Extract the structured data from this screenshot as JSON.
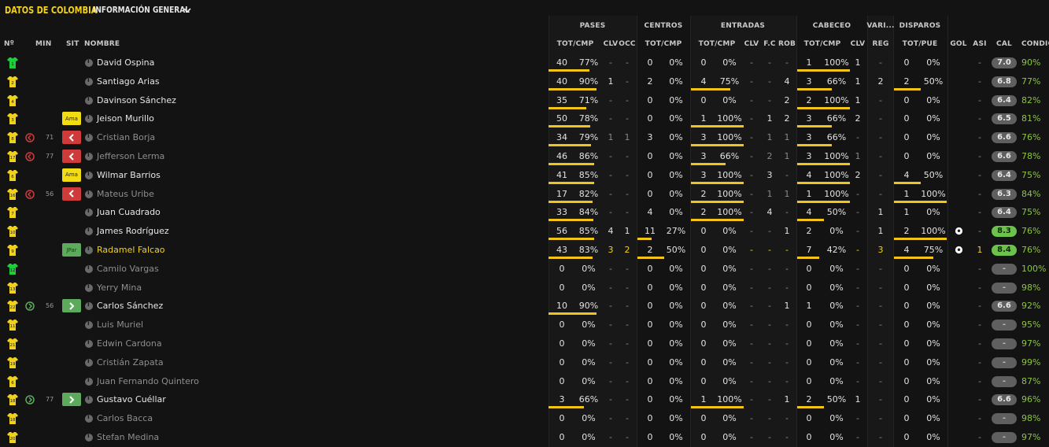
{
  "header": {
    "team_title": "DATOS DE COLOMBIA",
    "view_label": "INFORMACIÓN GENERAL"
  },
  "groups": {
    "pases": "PASES",
    "centros": "CENTROS",
    "entradas": "ENTRADAS",
    "cabeceo": "CABECEO",
    "varios": "VARI...",
    "disparos": "DISPAROS"
  },
  "columns": {
    "num": "Nº",
    "min": "MIN",
    "sit": "SIT",
    "nombre": "NOMBRE",
    "pases_totcmp": "TOT/CMP",
    "pases_clv": "CLV",
    "pases_occ": "OCC",
    "centros_totcmp": "TOT/CMP",
    "entradas_totcmp": "TOT/CMP",
    "entradas_clv": "CLV",
    "entradas_fc": "F.C",
    "entradas_rob": "ROB",
    "cabeceo_totcmp": "TOT/CMP",
    "cabeceo_clv": "CLV",
    "varios_reg": "REG",
    "disparos_totpue": "TOT/PUE",
    "gol": "GOL",
    "asi": "ASI",
    "cal": "CAL",
    "condic": "CONDIC"
  },
  "colors": {
    "accent_yellow": "#f0d21c",
    "bar_yellow": "#f2c318",
    "goalkeeper_green": "#1fcf3a",
    "sub_out_red": "#cf3b3b",
    "sub_in_green": "#5eaa5c",
    "condition_green": "#8cc63f"
  },
  "players": [
    {
      "num": "1",
      "gk": true,
      "min": "",
      "sit": "",
      "sit_type": "",
      "name": "David Ospina",
      "state": "active",
      "p_tot": "40",
      "p_pct": "77%",
      "p_bar": 0.77,
      "p_clv": "-",
      "p_occ": "-",
      "c_tot": "0",
      "c_pct": "0%",
      "c_bar": 0,
      "e_tot": "0",
      "e_pct": "0%",
      "e_bar": 0,
      "e_clv": "-",
      "e_fc": "-",
      "e_rob": "-",
      "h_tot": "1",
      "h_pct": "100%",
      "h_bar": 1,
      "h_clv": "1",
      "reg": "-",
      "d_tot": "0",
      "d_pct": "0%",
      "d_bar": 0,
      "gol": "",
      "asi": "-",
      "cal": "7.0",
      "cal_type": "",
      "cond": "90%"
    },
    {
      "num": "2",
      "gk": false,
      "min": "",
      "sit": "",
      "sit_type": "",
      "name": "Santiago Arias",
      "state": "active",
      "p_tot": "40",
      "p_pct": "90%",
      "p_bar": 0.9,
      "p_clv": "1",
      "p_occ": "-",
      "c_tot": "2",
      "c_pct": "0%",
      "c_bar": 0,
      "e_tot": "4",
      "e_pct": "75%",
      "e_bar": 0.75,
      "e_clv": "-",
      "e_fc": "-",
      "e_rob": "4",
      "h_tot": "3",
      "h_pct": "66%",
      "h_bar": 0.66,
      "h_clv": "1",
      "reg": "2",
      "d_tot": "2",
      "d_pct": "50%",
      "d_bar": 0.5,
      "gol": "",
      "asi": "-",
      "cal": "6.8",
      "cal_type": "",
      "cond": "77%"
    },
    {
      "num": "4",
      "gk": false,
      "min": "",
      "sit": "",
      "sit_type": "",
      "name": "Davinson Sánchez",
      "state": "active",
      "p_tot": "35",
      "p_pct": "71%",
      "p_bar": 0.71,
      "p_clv": "-",
      "p_occ": "-",
      "c_tot": "0",
      "c_pct": "0%",
      "c_bar": 0,
      "e_tot": "0",
      "e_pct": "0%",
      "e_bar": 0,
      "e_clv": "-",
      "e_fc": "-",
      "e_rob": "2",
      "h_tot": "2",
      "h_pct": "100%",
      "h_bar": 1,
      "h_clv": "1",
      "reg": "-",
      "d_tot": "0",
      "d_pct": "0%",
      "d_bar": 0,
      "gol": "",
      "asi": "-",
      "cal": "6.4",
      "cal_type": "",
      "cond": "82%"
    },
    {
      "num": "3",
      "gk": false,
      "min": "",
      "sit": "Ama",
      "sit_type": "ama",
      "name": "Jeison Murillo",
      "state": "active",
      "p_tot": "50",
      "p_pct": "78%",
      "p_bar": 0.78,
      "p_clv": "-",
      "p_occ": "-",
      "c_tot": "0",
      "c_pct": "0%",
      "c_bar": 0,
      "e_tot": "1",
      "e_pct": "100%",
      "e_bar": 1,
      "e_clv": "-",
      "e_fc": "1",
      "e_rob": "2",
      "h_tot": "3",
      "h_pct": "66%",
      "h_bar": 0.66,
      "h_clv": "2",
      "reg": "-",
      "d_tot": "0",
      "d_pct": "0%",
      "d_bar": 0,
      "gol": "",
      "asi": "-",
      "cal": "6.5",
      "cal_type": "",
      "cond": "81%"
    },
    {
      "num": "8",
      "gk": false,
      "min": "71",
      "min_icon": "out",
      "sit": "",
      "sit_type": "out",
      "name": "Cristian Borja",
      "state": "inactive",
      "p_tot": "34",
      "p_pct": "79%",
      "p_bar": 0.79,
      "p_clv": "1",
      "p_occ": "1",
      "c_tot": "3",
      "c_pct": "0%",
      "c_bar": 0,
      "e_tot": "3",
      "e_pct": "100%",
      "e_bar": 1,
      "e_clv": "-",
      "e_fc": "1",
      "e_rob": "1",
      "h_tot": "3",
      "h_pct": "66%",
      "h_bar": 0.66,
      "h_clv": "-",
      "reg": "-",
      "d_tot": "0",
      "d_pct": "0%",
      "d_bar": 0,
      "gol": "",
      "asi": "-",
      "cal": "6.6",
      "cal_type": "",
      "cond": "76%"
    },
    {
      "num": "17",
      "gk": false,
      "min": "77",
      "min_icon": "out",
      "sit": "",
      "sit_type": "out",
      "name": "Jefferson Lerma",
      "state": "inactive",
      "p_tot": "46",
      "p_pct": "86%",
      "p_bar": 0.86,
      "p_clv": "-",
      "p_occ": "-",
      "c_tot": "0",
      "c_pct": "0%",
      "c_bar": 0,
      "e_tot": "3",
      "e_pct": "66%",
      "e_bar": 0.66,
      "e_clv": "-",
      "e_fc": "2",
      "e_rob": "1",
      "h_tot": "3",
      "h_pct": "100%",
      "h_bar": 1,
      "h_clv": "1",
      "reg": "-",
      "d_tot": "0",
      "d_pct": "0%",
      "d_bar": 0,
      "gol": "",
      "asi": "-",
      "cal": "6.6",
      "cal_type": "",
      "cond": "78%"
    },
    {
      "num": "6",
      "gk": false,
      "min": "",
      "sit": "Ama",
      "sit_type": "ama",
      "name": "Wilmar Barrios",
      "state": "active",
      "p_tot": "41",
      "p_pct": "85%",
      "p_bar": 0.85,
      "p_clv": "-",
      "p_occ": "-",
      "c_tot": "0",
      "c_pct": "0%",
      "c_bar": 0,
      "e_tot": "3",
      "e_pct": "100%",
      "e_bar": 1,
      "e_clv": "-",
      "e_fc": "3",
      "e_rob": "-",
      "h_tot": "4",
      "h_pct": "100%",
      "h_bar": 1,
      "h_clv": "2",
      "reg": "-",
      "d_tot": "4",
      "d_pct": "50%",
      "d_bar": 0.5,
      "gol": "",
      "asi": "-",
      "cal": "6.4",
      "cal_type": "",
      "cond": "75%"
    },
    {
      "num": "16",
      "gk": false,
      "min": "56",
      "min_icon": "out",
      "sit": "",
      "sit_type": "out",
      "name": "Mateus Uribe",
      "state": "inactive",
      "p_tot": "17",
      "p_pct": "82%",
      "p_bar": 0.82,
      "p_clv": "-",
      "p_occ": "-",
      "c_tot": "0",
      "c_pct": "0%",
      "c_bar": 0,
      "e_tot": "2",
      "e_pct": "100%",
      "e_bar": 1,
      "e_clv": "-",
      "e_fc": "1",
      "e_rob": "1",
      "h_tot": "1",
      "h_pct": "100%",
      "h_bar": 1,
      "h_clv": "-",
      "reg": "-",
      "d_tot": "1",
      "d_pct": "100%",
      "d_bar": 1,
      "gol": "",
      "asi": "-",
      "cal": "6.3",
      "cal_type": "",
      "cond": "84%"
    },
    {
      "num": "7",
      "gk": false,
      "min": "",
      "sit": "",
      "sit_type": "",
      "name": "Juan Cuadrado",
      "state": "active",
      "p_tot": "33",
      "p_pct": "84%",
      "p_bar": 0.84,
      "p_clv": "-",
      "p_occ": "-",
      "c_tot": "4",
      "c_pct": "0%",
      "c_bar": 0,
      "e_tot": "2",
      "e_pct": "100%",
      "e_bar": 1,
      "e_clv": "-",
      "e_fc": "4",
      "e_rob": "-",
      "h_tot": "4",
      "h_pct": "50%",
      "h_bar": 0.5,
      "h_clv": "-",
      "reg": "1",
      "d_tot": "1",
      "d_pct": "0%",
      "d_bar": 0,
      "gol": "",
      "asi": "-",
      "cal": "6.4",
      "cal_type": "",
      "cond": "75%"
    },
    {
      "num": "10",
      "gk": false,
      "min": "",
      "sit": "",
      "sit_type": "",
      "name": "James Rodríguez",
      "state": "active",
      "p_tot": "56",
      "p_pct": "85%",
      "p_bar": 0.85,
      "p_clv": "4",
      "p_occ": "1",
      "c_tot": "11",
      "c_pct": "27%",
      "c_bar": 0.27,
      "e_tot": "0",
      "e_pct": "0%",
      "e_bar": 0,
      "e_clv": "-",
      "e_fc": "-",
      "e_rob": "1",
      "h_tot": "2",
      "h_pct": "0%",
      "h_bar": 0,
      "h_clv": "-",
      "reg": "1",
      "d_tot": "2",
      "d_pct": "100%",
      "d_bar": 1,
      "gol": "ball",
      "asi": "-",
      "cal": "8.3",
      "cal_type": "top",
      "cond": "76%"
    },
    {
      "num": "9",
      "gk": false,
      "min": "",
      "sit": "JPar",
      "sit_type": "jpar",
      "name": "Radamel Falcao",
      "state": "star",
      "p_tot": "43",
      "p_pct": "83%",
      "p_bar": 0.83,
      "p_clv": "3",
      "p_occ": "2",
      "c_tot": "2",
      "c_pct": "50%",
      "c_bar": 0.5,
      "e_tot": "0",
      "e_pct": "0%",
      "e_bar": 0,
      "e_clv": "-",
      "e_fc": "-",
      "e_rob": "-",
      "h_tot": "7",
      "h_pct": "42%",
      "h_bar": 0.42,
      "h_clv": "-",
      "reg": "3",
      "d_tot": "4",
      "d_pct": "75%",
      "d_bar": 0.75,
      "gol": "ball",
      "asi": "1",
      "cal": "8.4",
      "cal_type": "top",
      "cond": "76%"
    },
    {
      "num": "12",
      "gk": true,
      "min": "",
      "sit": "",
      "sit_type": "",
      "name": "Camilo Vargas",
      "state": "inactive",
      "p_tot": "0",
      "p_pct": "0%",
      "p_bar": 0,
      "p_clv": "-",
      "p_occ": "-",
      "c_tot": "0",
      "c_pct": "0%",
      "c_bar": 0,
      "e_tot": "0",
      "e_pct": "0%",
      "e_bar": 0,
      "e_clv": "-",
      "e_fc": "-",
      "e_rob": "-",
      "h_tot": "0",
      "h_pct": "0%",
      "h_bar": 0,
      "h_clv": "-",
      "reg": "-",
      "d_tot": "0",
      "d_pct": "0%",
      "d_bar": 0,
      "gol": "",
      "asi": "-",
      "cal": "-",
      "cal_type": "none",
      "cond": "100%"
    },
    {
      "num": "13",
      "gk": false,
      "min": "",
      "sit": "",
      "sit_type": "",
      "name": "Yerry Mina",
      "state": "inactive",
      "p_tot": "0",
      "p_pct": "0%",
      "p_bar": 0,
      "p_clv": "-",
      "p_occ": "-",
      "c_tot": "0",
      "c_pct": "0%",
      "c_bar": 0,
      "e_tot": "0",
      "e_pct": "0%",
      "e_bar": 0,
      "e_clv": "-",
      "e_fc": "-",
      "e_rob": "-",
      "h_tot": "0",
      "h_pct": "0%",
      "h_bar": 0,
      "h_clv": "-",
      "reg": "-",
      "d_tot": "0",
      "d_pct": "0%",
      "d_bar": 0,
      "gol": "",
      "asi": "-",
      "cal": "-",
      "cal_type": "none",
      "cond": "98%"
    },
    {
      "num": "22",
      "gk": false,
      "min": "56",
      "min_icon": "in",
      "sit": "",
      "sit_type": "in",
      "name": "Carlos Sánchez",
      "state": "active",
      "p_tot": "10",
      "p_pct": "90%",
      "p_bar": 0.9,
      "p_clv": "-",
      "p_occ": "-",
      "c_tot": "0",
      "c_pct": "0%",
      "c_bar": 0,
      "e_tot": "0",
      "e_pct": "0%",
      "e_bar": 0,
      "e_clv": "-",
      "e_fc": "-",
      "e_rob": "1",
      "h_tot": "1",
      "h_pct": "0%",
      "h_bar": 0,
      "h_clv": "-",
      "reg": "-",
      "d_tot": "0",
      "d_pct": "0%",
      "d_bar": 0,
      "gol": "",
      "asi": "-",
      "cal": "6.6",
      "cal_type": "",
      "cond": "92%"
    },
    {
      "num": "11",
      "gk": false,
      "min": "",
      "sit": "",
      "sit_type": "",
      "name": "Luis Muriel",
      "state": "inactive",
      "p_tot": "0",
      "p_pct": "0%",
      "p_bar": 0,
      "p_clv": "-",
      "p_occ": "-",
      "c_tot": "0",
      "c_pct": "0%",
      "c_bar": 0,
      "e_tot": "0",
      "e_pct": "0%",
      "e_bar": 0,
      "e_clv": "-",
      "e_fc": "-",
      "e_rob": "-",
      "h_tot": "0",
      "h_pct": "0%",
      "h_bar": 0,
      "h_clv": "-",
      "reg": "-",
      "d_tot": "0",
      "d_pct": "0%",
      "d_bar": 0,
      "gol": "",
      "asi": "-",
      "cal": "-",
      "cal_type": "none",
      "cond": "95%"
    },
    {
      "num": "21",
      "gk": false,
      "min": "",
      "sit": "",
      "sit_type": "",
      "name": "Edwin Cardona",
      "state": "inactive",
      "p_tot": "0",
      "p_pct": "0%",
      "p_bar": 0,
      "p_clv": "-",
      "p_occ": "-",
      "c_tot": "0",
      "c_pct": "0%",
      "c_bar": 0,
      "e_tot": "0",
      "e_pct": "0%",
      "e_bar": 0,
      "e_clv": "-",
      "e_fc": "-",
      "e_rob": "-",
      "h_tot": "0",
      "h_pct": "0%",
      "h_bar": 0,
      "h_clv": "-",
      "reg": "-",
      "d_tot": "0",
      "d_pct": "0%",
      "d_bar": 0,
      "gol": "",
      "asi": "-",
      "cal": "-",
      "cal_type": "none",
      "cond": "97%"
    },
    {
      "num": "19",
      "gk": false,
      "min": "",
      "sit": "",
      "sit_type": "",
      "name": "Cristián Zapata",
      "state": "inactive",
      "p_tot": "0",
      "p_pct": "0%",
      "p_bar": 0,
      "p_clv": "-",
      "p_occ": "-",
      "c_tot": "0",
      "c_pct": "0%",
      "c_bar": 0,
      "e_tot": "0",
      "e_pct": "0%",
      "e_bar": 0,
      "e_clv": "-",
      "e_fc": "-",
      "e_rob": "-",
      "h_tot": "0",
      "h_pct": "0%",
      "h_bar": 0,
      "h_clv": "-",
      "reg": "-",
      "d_tot": "0",
      "d_pct": "0%",
      "d_bar": 0,
      "gol": "",
      "asi": "-",
      "cal": "-",
      "cal_type": "none",
      "cond": "99%"
    },
    {
      "num": "6",
      "gk": false,
      "min": "",
      "sit": "",
      "sit_type": "",
      "name": "Juan Fernando Quintero",
      "state": "inactive",
      "p_tot": "0",
      "p_pct": "0%",
      "p_bar": 0,
      "p_clv": "-",
      "p_occ": "-",
      "c_tot": "0",
      "c_pct": "0%",
      "c_bar": 0,
      "e_tot": "0",
      "e_pct": "0%",
      "e_bar": 0,
      "e_clv": "-",
      "e_fc": "-",
      "e_rob": "-",
      "h_tot": "0",
      "h_pct": "0%",
      "h_bar": 0,
      "h_clv": "-",
      "reg": "-",
      "d_tot": "0",
      "d_pct": "0%",
      "d_bar": 0,
      "gol": "",
      "asi": "-",
      "cal": "-",
      "cal_type": "none",
      "cond": "87%"
    },
    {
      "num": "18",
      "gk": false,
      "min": "77",
      "min_icon": "in",
      "sit": "",
      "sit_type": "in",
      "name": "Gustavo Cuéllar",
      "state": "active",
      "p_tot": "3",
      "p_pct": "66%",
      "p_bar": 0.66,
      "p_clv": "-",
      "p_occ": "-",
      "c_tot": "0",
      "c_pct": "0%",
      "c_bar": 0,
      "e_tot": "1",
      "e_pct": "100%",
      "e_bar": 1,
      "e_clv": "-",
      "e_fc": "-",
      "e_rob": "1",
      "h_tot": "2",
      "h_pct": "50%",
      "h_bar": 0.5,
      "h_clv": "1",
      "reg": "-",
      "d_tot": "0",
      "d_pct": "0%",
      "d_bar": 0,
      "gol": "",
      "asi": "-",
      "cal": "6.6",
      "cal_type": "",
      "cond": "96%"
    },
    {
      "num": "18",
      "gk": false,
      "min": "",
      "sit": "",
      "sit_type": "",
      "name": "Carlos Bacca",
      "state": "inactive",
      "p_tot": "0",
      "p_pct": "0%",
      "p_bar": 0,
      "p_clv": "-",
      "p_occ": "-",
      "c_tot": "0",
      "c_pct": "0%",
      "c_bar": 0,
      "e_tot": "0",
      "e_pct": "0%",
      "e_bar": 0,
      "e_clv": "-",
      "e_fc": "-",
      "e_rob": "-",
      "h_tot": "0",
      "h_pct": "0%",
      "h_bar": 0,
      "h_clv": "-",
      "reg": "-",
      "d_tot": "0",
      "d_pct": "0%",
      "d_bar": 0,
      "gol": "",
      "asi": "-",
      "cal": "-",
      "cal_type": "none",
      "cond": "98%"
    },
    {
      "num": "20",
      "gk": false,
      "min": "",
      "sit": "",
      "sit_type": "",
      "name": "Stefan Medina",
      "state": "inactive",
      "p_tot": "0",
      "p_pct": "0%",
      "p_bar": 0,
      "p_clv": "-",
      "p_occ": "-",
      "c_tot": "0",
      "c_pct": "0%",
      "c_bar": 0,
      "e_tot": "0",
      "e_pct": "0%",
      "e_bar": 0,
      "e_clv": "-",
      "e_fc": "-",
      "e_rob": "-",
      "h_tot": "0",
      "h_pct": "0%",
      "h_bar": 0,
      "h_clv": "-",
      "reg": "-",
      "d_tot": "0",
      "d_pct": "0%",
      "d_bar": 0,
      "gol": "",
      "asi": "-",
      "cal": "-",
      "cal_type": "none",
      "cond": "97%"
    }
  ]
}
